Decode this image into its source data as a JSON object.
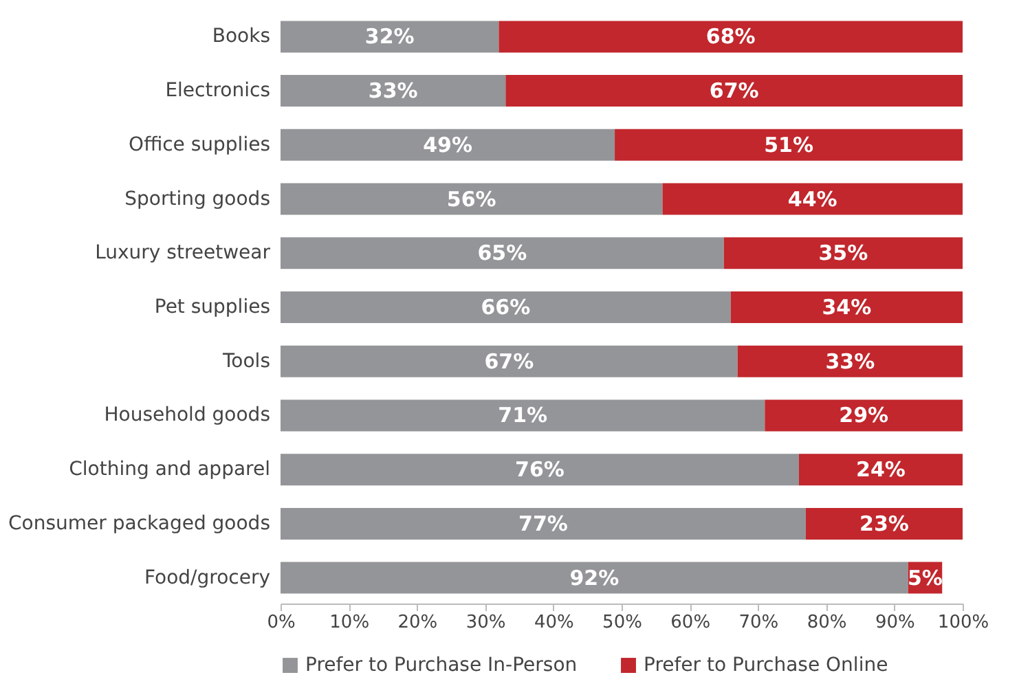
{
  "chart_data": {
    "type": "bar",
    "orientation": "horizontal",
    "stacked": true,
    "categories": [
      "Books",
      "Electronics",
      "Office supplies",
      "Sporting goods",
      "Luxury streetwear",
      "Pet supplies",
      "Tools",
      "Household goods",
      "Clothing and apparel",
      "Consumer packaged goods",
      "Food/grocery"
    ],
    "series": [
      {
        "name": "Prefer to Purchase In-Person",
        "color": "#939598",
        "values": [
          32,
          33,
          49,
          56,
          65,
          66,
          67,
          71,
          76,
          77,
          92
        ],
        "value_labels": [
          "32%",
          "33%",
          "49%",
          "56%",
          "65%",
          "66%",
          "67%",
          "71%",
          "76%",
          "77%",
          "92%"
        ]
      },
      {
        "name": "Prefer to Purchase Online",
        "color": "#c1272d",
        "values": [
          68,
          67,
          51,
          44,
          35,
          34,
          33,
          29,
          24,
          23,
          5
        ],
        "value_labels": [
          "68%",
          "67%",
          "51%",
          "44%",
          "35%",
          "34%",
          "33%",
          "29%",
          "24%",
          "23%",
          "5%"
        ]
      }
    ],
    "xlim": [
      0,
      100
    ],
    "xticks": [
      {
        "value": 0,
        "label": "0%"
      },
      {
        "value": 10,
        "label": "10%"
      },
      {
        "value": 20,
        "label": "20%"
      },
      {
        "value": 30,
        "label": "30%"
      },
      {
        "value": 40,
        "label": "40%"
      },
      {
        "value": 50,
        "label": "50%"
      },
      {
        "value": 60,
        "label": "60%"
      },
      {
        "value": 70,
        "label": "70%"
      },
      {
        "value": 80,
        "label": "80%"
      },
      {
        "value": 90,
        "label": "90%"
      },
      {
        "value": 100,
        "label": "100%"
      }
    ],
    "grid": false,
    "legend": "bottom"
  }
}
